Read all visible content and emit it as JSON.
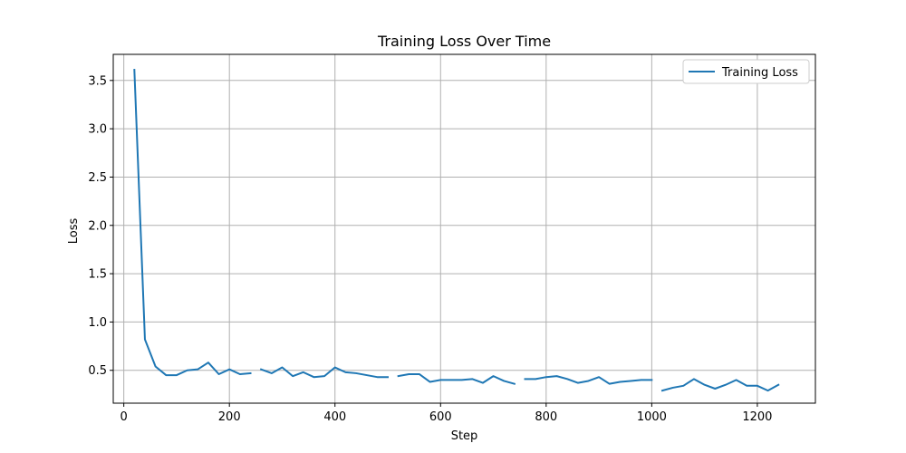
{
  "chart_data": {
    "type": "line",
    "title": "Training Loss Over Time",
    "xlabel": "Step",
    "ylabel": "Loss",
    "xlim": [
      -20,
      1310
    ],
    "ylim": [
      0.16,
      3.77
    ],
    "xticks": [
      0,
      200,
      400,
      600,
      800,
      1000,
      1200
    ],
    "yticks": [
      0.5,
      1.0,
      1.5,
      2.0,
      2.5,
      3.0,
      3.5
    ],
    "ytick_labels": [
      "0.5",
      "1.0",
      "1.5",
      "2.0",
      "2.5",
      "3.0",
      "3.5"
    ],
    "grid": true,
    "legend_position": "top-right",
    "colors": {
      "series": "#1f77b4",
      "grid": "#b0b0b0",
      "axis": "#000000"
    },
    "series": [
      {
        "name": "Training Loss",
        "segments": [
          {
            "x": [
              20,
              40,
              60,
              80,
              100,
              120,
              140,
              160,
              180,
              200,
              220,
              240
            ],
            "y": [
              3.61,
              0.82,
              0.54,
              0.45,
              0.45,
              0.5,
              0.51,
              0.58,
              0.46,
              0.51,
              0.46,
              0.47
            ]
          },
          {
            "x": [
              260,
              280,
              300,
              320,
              340,
              360,
              380,
              400,
              420,
              440,
              460,
              480,
              500
            ],
            "y": [
              0.51,
              0.47,
              0.53,
              0.44,
              0.48,
              0.43,
              0.44,
              0.53,
              0.48,
              0.47,
              0.45,
              0.43,
              0.43
            ]
          },
          {
            "x": [
              520,
              540,
              560,
              580,
              600,
              620,
              640,
              660,
              680,
              700,
              720,
              740
            ],
            "y": [
              0.44,
              0.46,
              0.46,
              0.38,
              0.4,
              0.4,
              0.4,
              0.41,
              0.37,
              0.44,
              0.39,
              0.36
            ]
          },
          {
            "x": [
              760,
              780,
              800,
              820,
              840,
              860,
              880,
              900,
              920,
              940,
              960,
              980,
              1000
            ],
            "y": [
              0.41,
              0.41,
              0.43,
              0.44,
              0.41,
              0.37,
              0.39,
              0.43,
              0.36,
              0.38,
              0.39,
              0.4,
              0.4
            ]
          },
          {
            "x": [
              1020,
              1040,
              1060,
              1080,
              1100,
              1120,
              1140,
              1160,
              1180,
              1200,
              1220,
              1240
            ],
            "y": [
              0.29,
              0.32,
              0.34,
              0.41,
              0.35,
              0.31,
              0.35,
              0.4,
              0.34,
              0.34,
              0.29,
              0.35
            ]
          }
        ]
      }
    ]
  }
}
